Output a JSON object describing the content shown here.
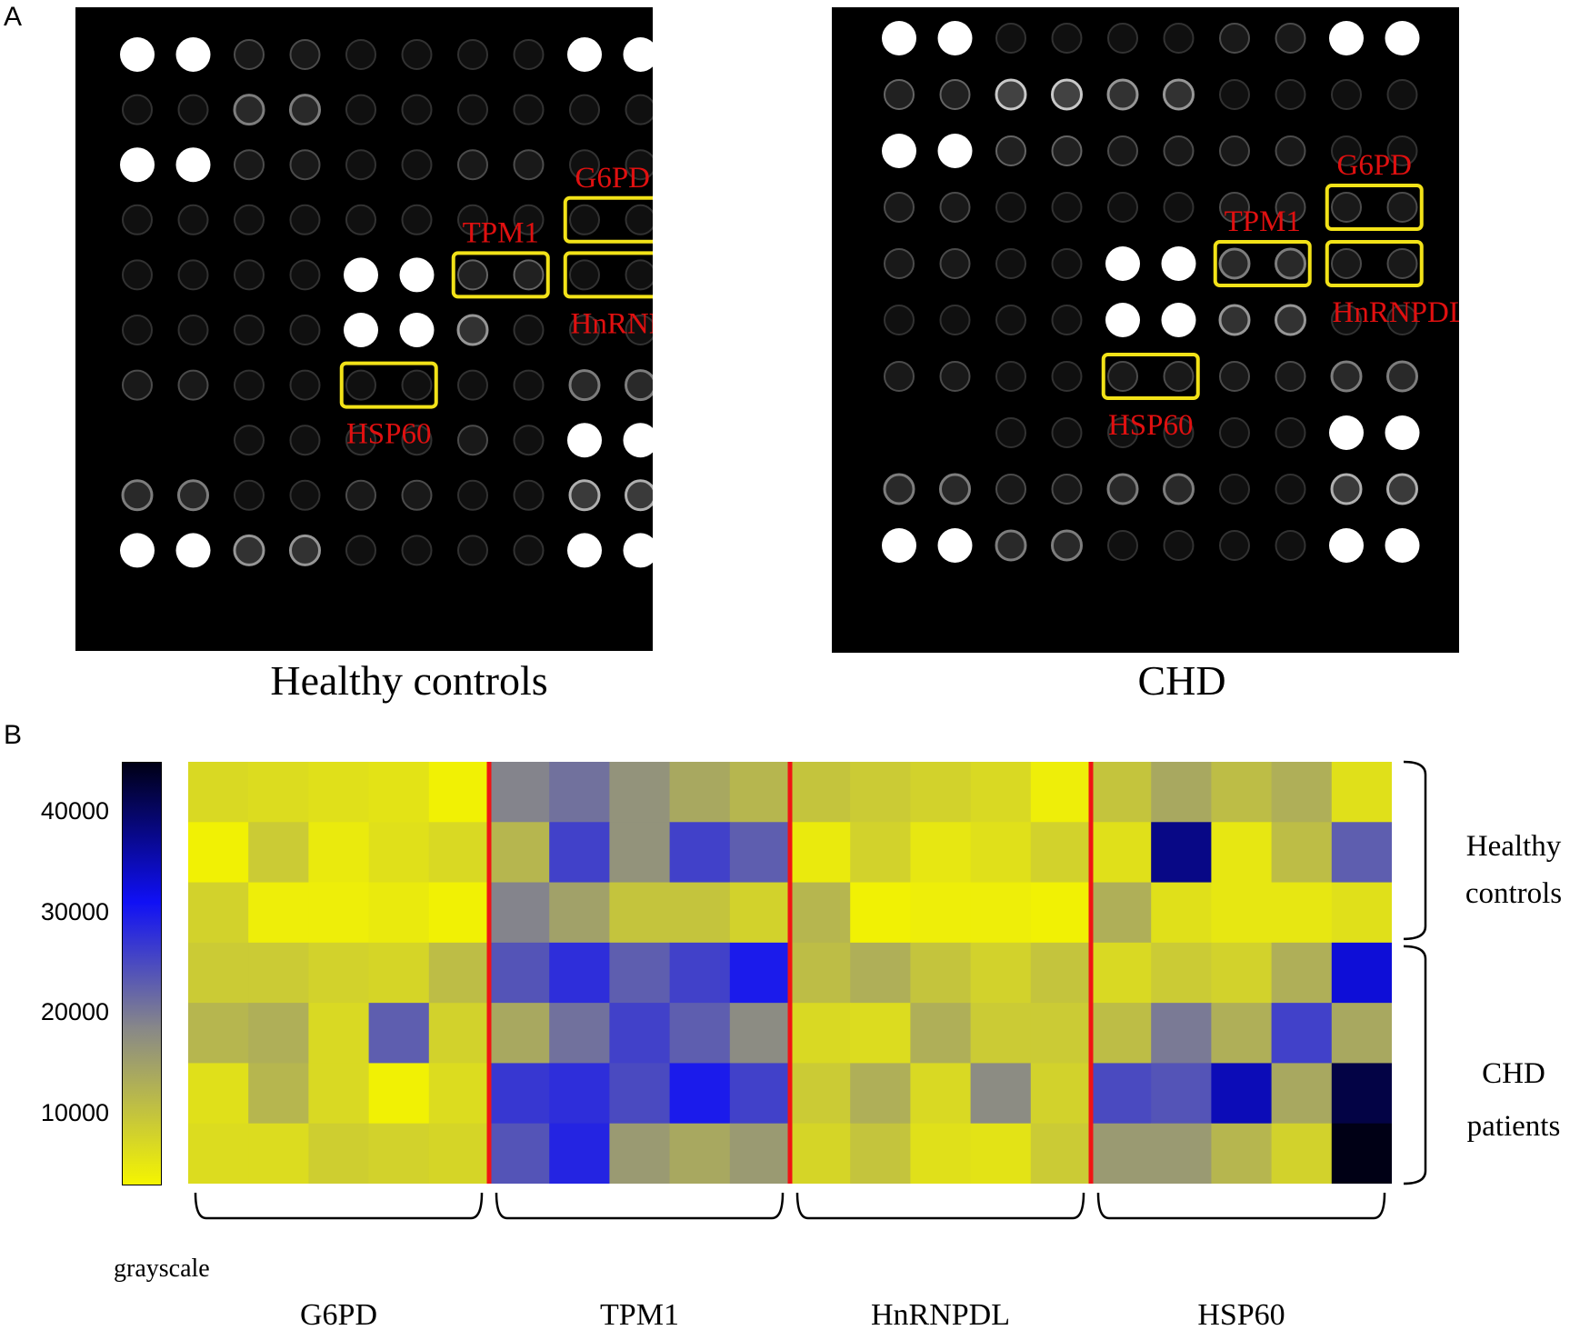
{
  "panel_a": {
    "letter": "A",
    "arrays": [
      {
        "caption": "Healthy controls",
        "spots": [
          [
            10,
            10,
            2,
            2,
            1,
            1,
            1,
            1,
            10,
            10
          ],
          [
            1,
            1,
            4,
            4,
            1,
            1,
            1,
            1,
            1,
            1
          ],
          [
            10,
            10,
            2,
            2,
            1,
            1,
            2,
            2,
            1,
            1
          ],
          [
            1,
            1,
            1,
            1,
            1,
            1,
            1,
            1,
            1,
            1
          ],
          [
            1,
            1,
            1,
            1,
            10,
            10,
            3,
            3,
            1,
            1
          ],
          [
            1,
            1,
            1,
            1,
            10,
            10,
            5,
            1,
            1,
            1
          ],
          [
            2,
            2,
            1,
            1,
            1,
            1,
            1,
            1,
            4,
            4
          ],
          [
            0,
            0,
            1,
            1,
            1,
            1,
            2,
            1,
            10,
            10
          ],
          [
            4,
            4,
            1,
            1,
            2,
            2,
            1,
            1,
            6,
            6
          ],
          [
            10,
            10,
            5,
            5,
            1,
            1,
            1,
            1,
            10,
            10
          ]
        ],
        "regions": [
          {
            "label": "G6PD",
            "row": 3,
            "col": 8
          },
          {
            "label": "TPM1",
            "row": 4,
            "col": 6
          },
          {
            "label": "HnRNPDL",
            "row": 4,
            "col": 8
          },
          {
            "label": "HSP60",
            "row": 6,
            "col": 4
          }
        ]
      },
      {
        "caption": "CHD",
        "spots": [
          [
            10,
            10,
            1,
            1,
            1,
            1,
            2,
            2,
            10,
            10
          ],
          [
            3,
            3,
            7,
            7,
            5,
            5,
            1,
            1,
            1,
            1
          ],
          [
            10,
            10,
            3,
            3,
            2,
            2,
            2,
            2,
            1,
            1
          ],
          [
            2,
            2,
            1,
            1,
            1,
            1,
            2,
            2,
            2,
            2
          ],
          [
            2,
            2,
            1,
            1,
            10,
            10,
            4,
            4,
            2,
            2
          ],
          [
            1,
            1,
            1,
            1,
            10,
            10,
            5,
            5,
            1,
            1
          ],
          [
            2,
            2,
            1,
            1,
            2,
            2,
            2,
            2,
            4,
            4
          ],
          [
            0,
            0,
            1,
            1,
            1,
            1,
            1,
            1,
            10,
            10
          ],
          [
            4,
            4,
            2,
            2,
            4,
            4,
            1,
            1,
            6,
            6
          ],
          [
            10,
            10,
            4,
            4,
            1,
            1,
            1,
            1,
            10,
            10
          ]
        ],
        "regions": [
          {
            "label": "G6PD",
            "row": 3,
            "col": 8
          },
          {
            "label": "TPM1",
            "row": 4,
            "col": 6
          },
          {
            "label": "HnRNPDL",
            "row": 4,
            "col": 8
          },
          {
            "label": "HSP60",
            "row": 6,
            "col": 4
          }
        ]
      }
    ],
    "region_box_color": "#f2e218",
    "region_label_color": "#e01010"
  },
  "panel_b": {
    "letter": "B",
    "chart_data": {
      "type": "heatmap",
      "title": "",
      "colorbar": {
        "label": "grayscale",
        "ticks": [
          10000,
          20000,
          30000,
          40000
        ],
        "tick_labels": [
          "10000",
          "20000",
          "30000",
          "40000"
        ],
        "range": [
          3000,
          45000
        ],
        "colors": [
          "#f5f500",
          "#888888",
          "#1010f5",
          "#000015"
        ]
      },
      "groups": [
        "G6PD",
        "TPM1",
        "HnRNPDL",
        "HSP60"
      ],
      "columns_per_group": 5,
      "row_groups": [
        {
          "label": "Healthy controls",
          "rows": [
            0,
            1,
            2
          ]
        },
        {
          "label": "CHD patients",
          "rows": [
            3,
            4,
            5,
            6
          ]
        }
      ],
      "values": [
        [
          7000,
          6500,
          6000,
          5500,
          3500,
          19000,
          21000,
          17000,
          14000,
          12000,
          10000,
          9000,
          8000,
          7000,
          4000,
          10000,
          14000,
          11000,
          13000,
          6000
        ],
        [
          3500,
          9000,
          4500,
          6000,
          7000,
          12000,
          26000,
          17000,
          26000,
          23000,
          4500,
          8000,
          5000,
          6000,
          8000,
          6000,
          38000,
          5000,
          11000,
          23000
        ],
        [
          8000,
          4000,
          4000,
          4500,
          3500,
          19000,
          15000,
          10000,
          10000,
          8000,
          12000,
          3500,
          4000,
          4000,
          3500,
          13000,
          6000,
          5000,
          5000,
          6000
        ],
        [
          9000,
          9000,
          8000,
          7500,
          11000,
          24000,
          28000,
          23000,
          26000,
          30000,
          11000,
          13000,
          10000,
          8000,
          10000,
          7000,
          9000,
          8000,
          13000,
          33000
        ],
        [
          12000,
          13000,
          7000,
          23000,
          8000,
          14000,
          21000,
          26000,
          23000,
          18000,
          7000,
          6500,
          13000,
          9000,
          9000,
          11000,
          20000,
          13000,
          26000,
          14000
        ],
        [
          6000,
          12000,
          7000,
          3500,
          6500,
          27000,
          28000,
          25000,
          30000,
          26000,
          9000,
          13000,
          7000,
          18000,
          8000,
          25000,
          24000,
          35000,
          14000,
          42000
        ],
        [
          6500,
          6500,
          8500,
          8000,
          7500,
          24000,
          29000,
          16000,
          14000,
          16000,
          7500,
          10000,
          6000,
          5500,
          9000,
          16000,
          16000,
          12000,
          8000,
          45000
        ]
      ]
    }
  }
}
